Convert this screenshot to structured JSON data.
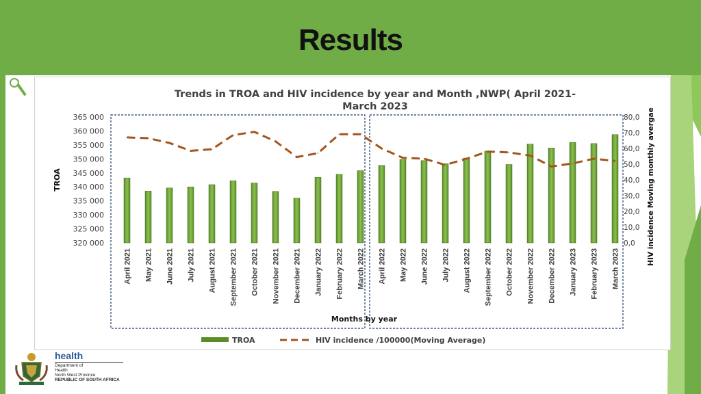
{
  "slide": {
    "title": "Results"
  },
  "colors": {
    "banner": "#70ad47",
    "bar": "#5b8c2a",
    "bar_light": "#8cc04f",
    "line": "#a5541b",
    "box": "#1f3b6b"
  },
  "logo": {
    "name": "health",
    "line1": "Department of",
    "line2": "Health",
    "line3": "North West Province",
    "line4": "REPUBLIC OF SOUTH AFRICA"
  },
  "chart_data": {
    "type": "bar",
    "title_line1": "Trends in TROA and HIV incidence by year and Month ,NWP( April 2021-",
    "title_line2": "March 2023",
    "xlabel": "Months by year",
    "ylabel": "TROA",
    "y2label": "HIV incidence Moving monthly  avergae",
    "ylim": [
      320000,
      365000
    ],
    "y2lim": [
      0,
      80
    ],
    "yticks": [
      "320 000",
      "325 000",
      "330 000",
      "335 000",
      "340 000",
      "345 000",
      "350 000",
      "355 000",
      "360 000",
      "365 000"
    ],
    "y2ticks": [
      "0,0",
      "10,0",
      "20,0",
      "30,0",
      "40,0",
      "50,0",
      "60,0",
      "70,0",
      "80,0"
    ],
    "categories": [
      "April 2021",
      "May 2021",
      "June 2021",
      "July 2021",
      "August 2021",
      "September 2021",
      "October 2021",
      "November 2021",
      "December 2021",
      "January 2022",
      "February 2022",
      "March 2022",
      "April 2022",
      "May 2022",
      "June 2022",
      "July 2022",
      "August 2022",
      "September 2022",
      "October 2022",
      "November 2022",
      "December 2022",
      "January 2023",
      "February 2023",
      "March 2023"
    ],
    "series": [
      {
        "name": "TROA",
        "type": "bar",
        "axis": "left",
        "values": [
          343200,
          338500,
          339600,
          340000,
          340800,
          342200,
          341400,
          338400,
          336000,
          343400,
          344500,
          345800,
          347700,
          349800,
          349400,
          348300,
          350300,
          352800,
          348000,
          355300,
          353900,
          355900,
          355500,
          358700
        ]
      },
      {
        "name": "HIV  incidence /100000(Moving Average)",
        "type": "line",
        "axis": "right",
        "dashed": true,
        "values": [
          67,
          66.5,
          63.5,
          58.5,
          59.5,
          68.5,
          70.5,
          64.5,
          54.5,
          57,
          69,
          69,
          60,
          54,
          53.5,
          49.5,
          53.5,
          58,
          57.5,
          55.5,
          48.5,
          50.5,
          53.5,
          52
        ]
      }
    ],
    "legend": {
      "position": "bottom",
      "bar_label": "TROA",
      "line_label": "HIV  incidence /100000(Moving Average)"
    }
  }
}
